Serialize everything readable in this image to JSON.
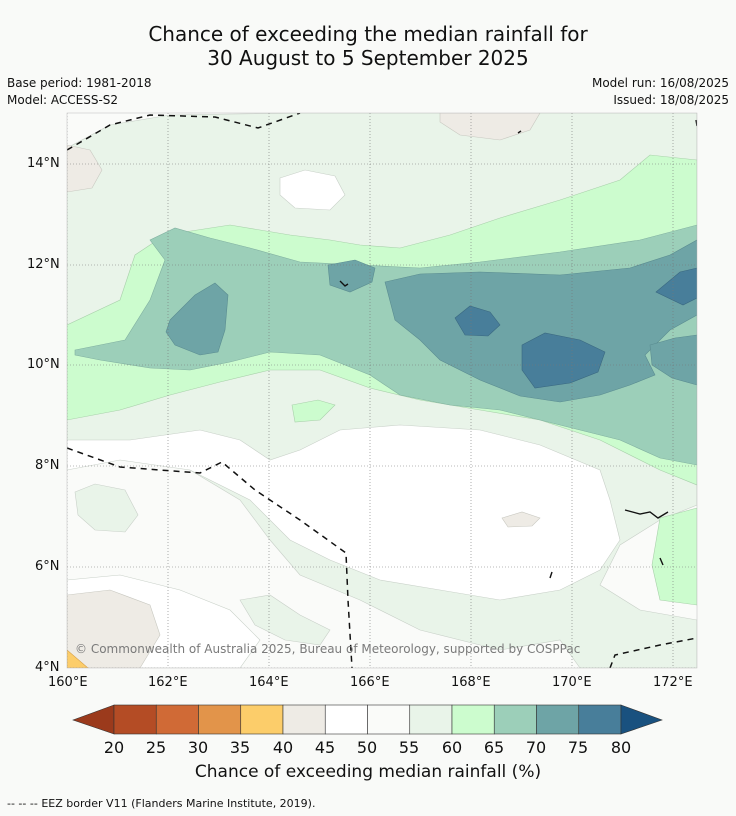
{
  "title": {
    "line1": "Chance of exceeding the median rainfall for",
    "line2": "30 August to 5 September 2025"
  },
  "meta": {
    "base_period": "Base period: 1981-2018",
    "model": "Model: ACCESS-S2",
    "model_run": "Model run: 16/08/2025",
    "issued": "Issued: 18/08/2025"
  },
  "map": {
    "lat_ticks": [
      "14°N",
      "12°N",
      "10°N",
      "8°N",
      "6°N",
      "4°N"
    ],
    "lon_ticks": [
      "160°E",
      "162°E",
      "164°E",
      "166°E",
      "168°E",
      "170°E",
      "172°E"
    ],
    "copyright": "© Commonwealth of Australia 2025, Bureau of Meteorology, supported by COSPPac"
  },
  "colorbar": {
    "title": "Chance of exceeding median rainfall (%)",
    "labels": [
      "20",
      "25",
      "30",
      "35",
      "40",
      "45",
      "50",
      "55",
      "60",
      "65",
      "70",
      "75",
      "80"
    ],
    "colors": {
      "below20": "#9b3a1c",
      "c20_25": "#b44c25",
      "c25_30": "#d06a36",
      "c30_35": "#e2944a",
      "c35_40": "#fccd6a",
      "c40_45": "#eeebe5",
      "c45_50": "#ffffff",
      "c50_55": "#fafbf9",
      "c55_60": "#e9f4e9",
      "c60_65": "#ccfcce",
      "c65_70": "#9ccfb9",
      "c70_75": "#6ea4a6",
      "c75_80": "#487e9a",
      "above80": "#19517f"
    }
  },
  "footer": {
    "legend_symbol": "--  --  --",
    "legend_text": "EEZ border V11 (Flanders Marine Institute, 2019)."
  }
}
